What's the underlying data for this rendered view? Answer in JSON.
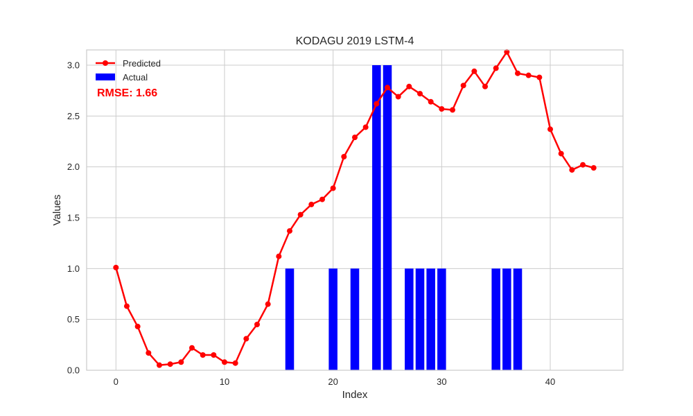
{
  "chart_data": {
    "type": "bar",
    "title": "KODAGU 2019 LSTM-4",
    "xlabel": "Index",
    "ylabel": "Values",
    "xlim": [
      -2.7,
      46.7
    ],
    "ylim": [
      0,
      3.15
    ],
    "xticks": [
      0,
      10,
      20,
      30,
      40
    ],
    "yticks": [
      0.0,
      0.5,
      1.0,
      1.5,
      2.0,
      2.5,
      3.0
    ],
    "xtick_labels": [
      "0",
      "10",
      "20",
      "30",
      "40"
    ],
    "ytick_labels": [
      "0.0",
      "0.5",
      "1.0",
      "1.5",
      "2.0",
      "2.5",
      "3.0"
    ],
    "grid": true,
    "legend_position": "top-left",
    "annotation": "RMSE: 1.66",
    "colors": {
      "predicted": "#ff0000",
      "actual": "#0000ff",
      "annotation": "#ff0000",
      "grid": "#cccccc",
      "frame": "#cccccc"
    },
    "series": [
      {
        "name": "Predicted",
        "type": "line",
        "x": [
          0,
          1,
          2,
          3,
          4,
          5,
          6,
          7,
          8,
          9,
          10,
          11,
          12,
          13,
          14,
          15,
          16,
          17,
          18,
          19,
          20,
          21,
          22,
          23,
          24,
          25,
          26,
          27,
          28,
          29,
          30,
          31,
          32,
          33,
          34,
          35,
          36,
          37,
          38,
          39,
          40,
          41,
          42,
          43,
          44
        ],
        "values": [
          1.01,
          0.63,
          0.43,
          0.17,
          0.05,
          0.06,
          0.08,
          0.22,
          0.15,
          0.15,
          0.08,
          0.07,
          0.31,
          0.45,
          0.65,
          1.12,
          1.37,
          1.53,
          1.63,
          1.68,
          1.79,
          2.1,
          2.29,
          2.39,
          2.62,
          2.78,
          2.69,
          2.79,
          2.72,
          2.64,
          2.57,
          2.56,
          2.8,
          2.94,
          2.79,
          2.97,
          3.13,
          2.92,
          2.9,
          2.88,
          2.37,
          2.13,
          1.97,
          2.02,
          1.99
        ]
      },
      {
        "name": "Actual",
        "type": "bar",
        "x": [
          16,
          20,
          22,
          24,
          25,
          27,
          28,
          29,
          30,
          35,
          36,
          37
        ],
        "values": [
          1,
          1,
          1,
          3,
          3,
          1,
          1,
          1,
          1,
          1,
          1,
          1
        ]
      }
    ]
  }
}
